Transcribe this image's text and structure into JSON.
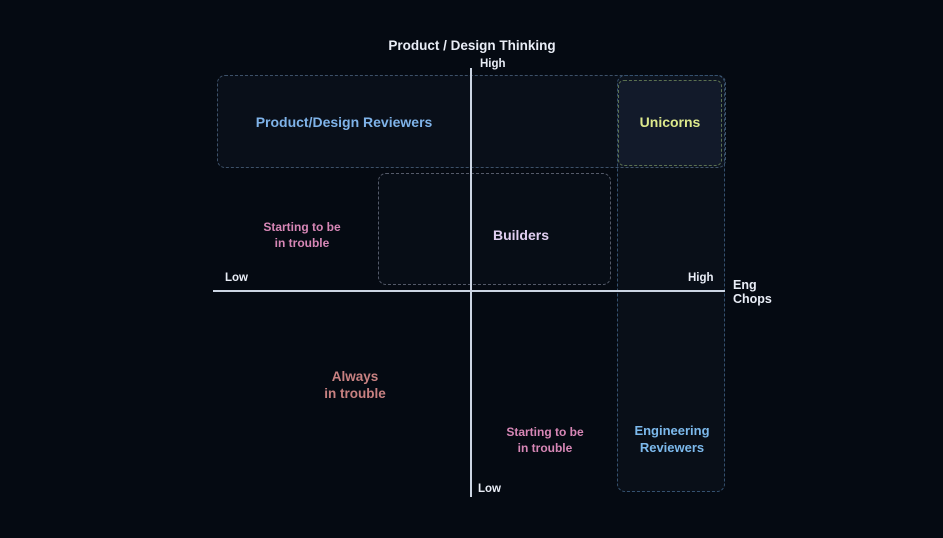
{
  "diagram": {
    "title": "Product / Design Thinking",
    "vertical_axis": {
      "name": "Product / Design Thinking",
      "high_label": "High",
      "low_label": "Low"
    },
    "horizontal_axis": {
      "name": "Eng Chops",
      "axis_label": "Eng\nChops",
      "high_label": "High",
      "low_label": "Low"
    },
    "regions": {
      "product_design_reviewers": {
        "label": "Product/Design Reviewers",
        "text_color": "#7fb3e9",
        "border_color": "#3d5169",
        "position": "top row, high product/design thinking"
      },
      "unicorns": {
        "label": "Unicorns",
        "text_color": "#dde98c",
        "border_color": "#5a7050",
        "fill_color": "#121a2a",
        "position": "top right, high on both axes"
      },
      "builders": {
        "label": "Builders",
        "text_color": "#e1cff1",
        "border_color": "#545a69",
        "position": "center, straddling vertical axis above horizontal axis"
      },
      "engineering_reviewers": {
        "label": "Engineering\nReviewers",
        "text_color": "#7cb9ec",
        "border_color": "#35516f",
        "position": "right column, high eng chops"
      },
      "starting_to_be_in_trouble_upper": {
        "label": "Starting to be\nin trouble",
        "text_color": "#d787b6",
        "position": "left of builders box, above horizontal axis"
      },
      "always_in_trouble": {
        "label": "Always\nin trouble",
        "text_color": "#c88181",
        "position": "bottom left quadrant"
      },
      "starting_to_be_in_trouble_lower": {
        "label": "Starting to be\nin trouble",
        "text_color": "#d787b6",
        "position": "bottom, right of vertical axis"
      }
    },
    "style": {
      "background_color": "#050a12",
      "axis_line_color": "#ccd5e3",
      "label_text_color": "#e9edf6"
    }
  }
}
